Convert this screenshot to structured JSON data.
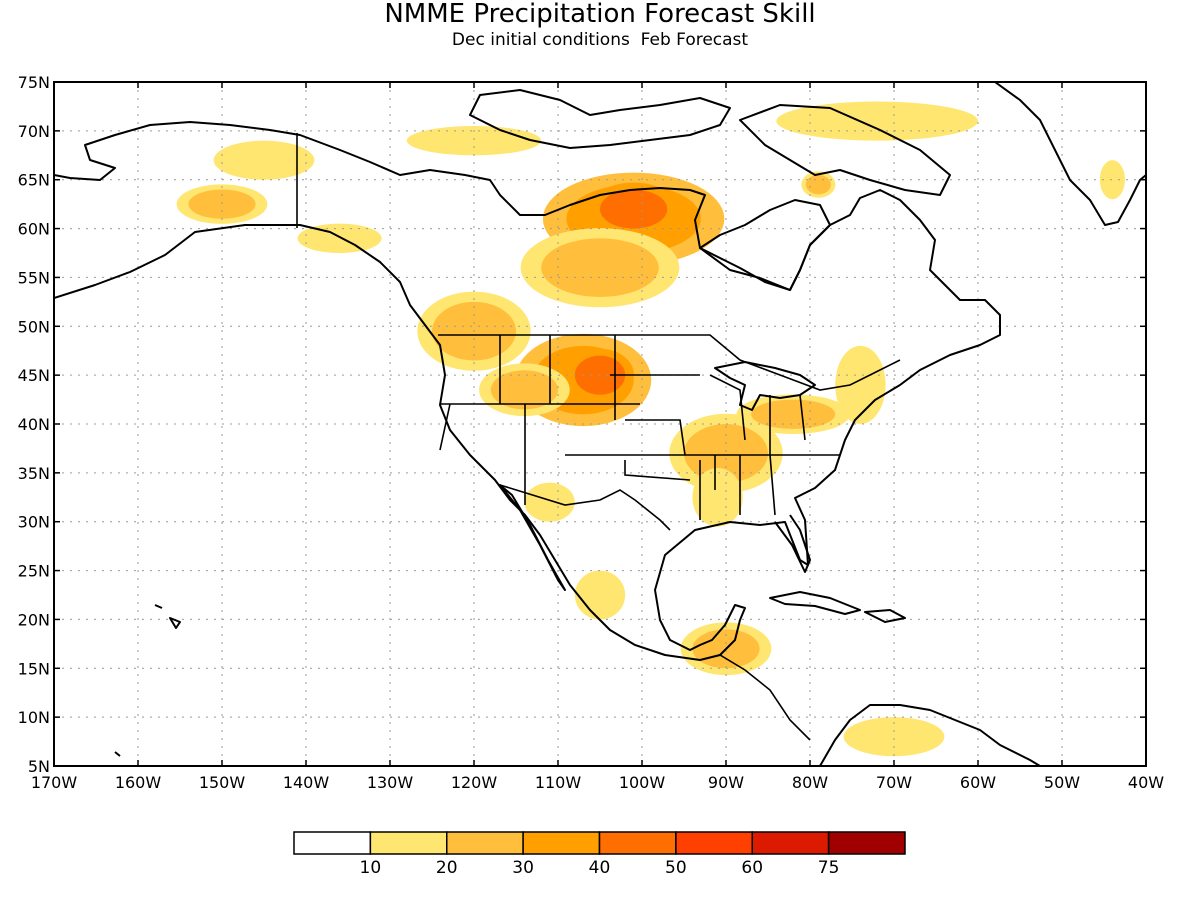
{
  "chart_data": {
    "type": "map",
    "title": "NMME Precipitation Forecast Skill",
    "subtitle": "Dec initial conditions  Feb Forecast",
    "lon_range": [
      -170,
      -40
    ],
    "lat_range": [
      5,
      75
    ],
    "grid": true,
    "x_ticks": [
      "170W",
      "160W",
      "150W",
      "140W",
      "130W",
      "120W",
      "110W",
      "100W",
      "90W",
      "80W",
      "70W",
      "60W",
      "50W",
      "40W"
    ],
    "y_ticks": [
      "5N",
      "10N",
      "15N",
      "20N",
      "25N",
      "30N",
      "35N",
      "40N",
      "45N",
      "50N",
      "55N",
      "60N",
      "65N",
      "70N",
      "75N"
    ],
    "colorbar": {
      "placement": "bottom",
      "colors": [
        "#ffffff",
        "#ffe670",
        "#ffbf3c",
        "#ff9f00",
        "#ff6e00",
        "#ff4000",
        "#dc1a00",
        "#a00000"
      ],
      "labels": [
        "10",
        "20",
        "30",
        "40",
        "50",
        "60",
        "75"
      ]
    },
    "skill_regions": [
      {
        "name": "alaska-south-coast",
        "level": 2,
        "center": [
          -150,
          62.5
        ],
        "radius": [
          4,
          1.5
        ]
      },
      {
        "name": "alaska-panhandle",
        "level": 1,
        "center": [
          -136,
          59
        ],
        "radius": [
          5,
          1.5
        ]
      },
      {
        "name": "alaska-north",
        "level": 1,
        "center": [
          -145,
          67
        ],
        "radius": [
          6,
          2
        ]
      },
      {
        "name": "arctic-islands",
        "level": 1,
        "center": [
          -120,
          69
        ],
        "radius": [
          8,
          1.5
        ]
      },
      {
        "name": "hudson-west",
        "level": 3,
        "center": [
          -101,
          61
        ],
        "radius": [
          8,
          3.5
        ]
      },
      {
        "name": "hudson-west-core",
        "level": 4,
        "center": [
          -101,
          62
        ],
        "radius": [
          4,
          2
        ]
      },
      {
        "name": "manitoba",
        "level": 2,
        "center": [
          -105,
          56
        ],
        "radius": [
          7,
          3
        ]
      },
      {
        "name": "baffin-coast",
        "level": 1,
        "center": [
          -72,
          71
        ],
        "radius": [
          12,
          2
        ]
      },
      {
        "name": "labrador-spot",
        "level": 2,
        "center": [
          -79,
          64.5
        ],
        "radius": [
          1.5,
          1
        ]
      },
      {
        "name": "greenland-east",
        "level": 1,
        "center": [
          -44,
          65
        ],
        "radius": [
          1.5,
          2
        ]
      },
      {
        "name": "pacific-northwest",
        "level": 2,
        "center": [
          -120,
          49.5
        ],
        "radius": [
          5,
          3
        ]
      },
      {
        "name": "montana-wyoming",
        "level": 3,
        "center": [
          -107,
          44.5
        ],
        "radius": [
          6,
          3.5
        ]
      },
      {
        "name": "montana-core",
        "level": 4,
        "center": [
          -105,
          45
        ],
        "radius": [
          3,
          2
        ]
      },
      {
        "name": "idaho",
        "level": 2,
        "center": [
          -114,
          43.5
        ],
        "radius": [
          4,
          2
        ]
      },
      {
        "name": "arkansas-tennessee",
        "level": 2,
        "center": [
          -90,
          37
        ],
        "radius": [
          5,
          3
        ]
      },
      {
        "name": "mississippi-valley",
        "level": 1,
        "center": [
          -91,
          32.5
        ],
        "radius": [
          3,
          3
        ]
      },
      {
        "name": "ohio-valley",
        "level": 2,
        "center": [
          -82,
          41
        ],
        "radius": [
          5,
          1.5
        ]
      },
      {
        "name": "northeast",
        "level": 1,
        "center": [
          -74,
          44
        ],
        "radius": [
          3,
          4
        ]
      },
      {
        "name": "sonora",
        "level": 1,
        "center": [
          -111,
          32
        ],
        "radius": [
          3,
          2
        ]
      },
      {
        "name": "mexico-west",
        "level": 1,
        "center": [
          -105,
          22.5
        ],
        "radius": [
          3,
          2.5
        ]
      },
      {
        "name": "yucatan-belize",
        "level": 2,
        "center": [
          -90,
          17
        ],
        "radius": [
          4,
          2
        ]
      },
      {
        "name": "south-america-north",
        "level": 1,
        "center": [
          -70,
          8
        ],
        "radius": [
          6,
          2
        ]
      }
    ]
  }
}
